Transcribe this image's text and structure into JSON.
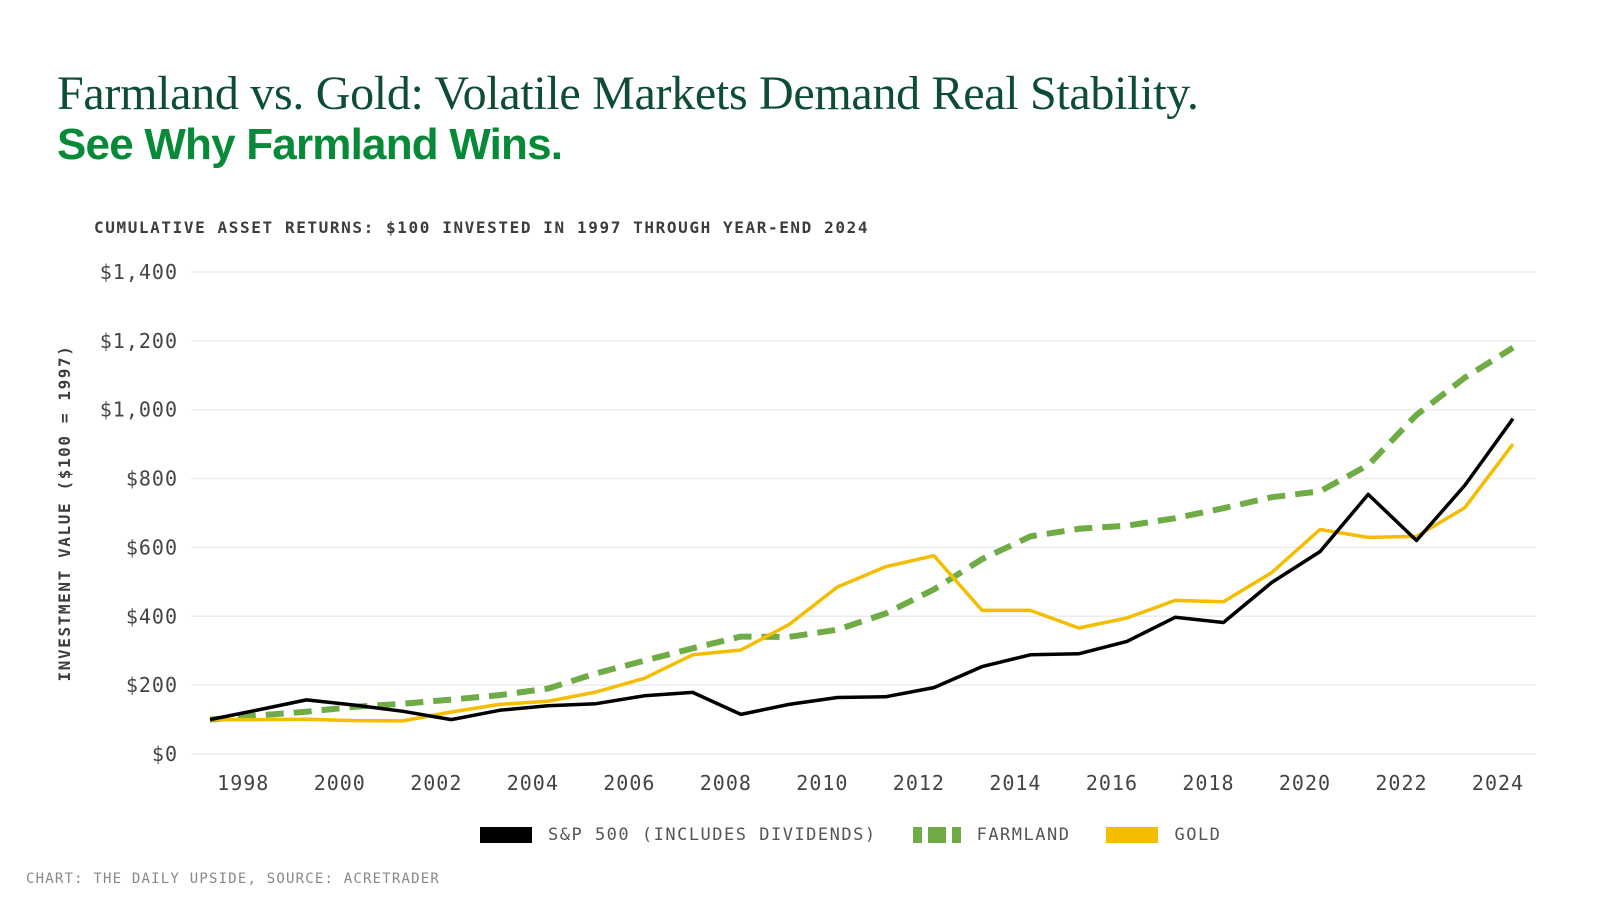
{
  "header": {
    "title": "Farmland vs. Gold: Volatile Markets Demand Real Stability.",
    "subtitle": "See Why Farmland Wins."
  },
  "chart_data": {
    "type": "line",
    "title": "CUMULATIVE ASSET RETURNS: $100 INVESTED IN 1997 THROUGH YEAR-END 2024",
    "ylabel": "INVESTMENT VALUE ($100 = 1997)",
    "xlabel": "",
    "ylim": [
      0,
      1400
    ],
    "yticks": [
      "$0",
      "$200",
      "$400",
      "$600",
      "$800",
      "$1,000",
      "$1,200",
      "$1,400"
    ],
    "ytick_values": [
      0,
      200,
      400,
      600,
      800,
      1000,
      1200,
      1400
    ],
    "xticks": [
      "1998",
      "2000",
      "2002",
      "2004",
      "2006",
      "2008",
      "2010",
      "2012",
      "2014",
      "2016",
      "2018",
      "2020",
      "2022",
      "2024"
    ],
    "grid": "horizontal",
    "legend_position": "bottom",
    "x": [
      1997,
      1998,
      1999,
      2000,
      2001,
      2002,
      2003,
      2004,
      2005,
      2006,
      2007,
      2008,
      2009,
      2010,
      2011,
      2012,
      2013,
      2014,
      2015,
      2016,
      2017,
      2018,
      2019,
      2020,
      2021,
      2022,
      2023,
      2024
    ],
    "series": [
      {
        "name": "S&P 500 (INCLUDES DIVIDENDS)",
        "color": "#000000",
        "style": "solid",
        "values": [
          100,
          128,
          157,
          142,
          124,
          100,
          127,
          140,
          146,
          169,
          179,
          115,
          144,
          164,
          166,
          193,
          254,
          288,
          291,
          327,
          397,
          382,
          498,
          588,
          754,
          620,
          780,
          974
        ]
      },
      {
        "name": "FARMLAND",
        "color": "#6fac45",
        "style": "dashed",
        "values": [
          100,
          112,
          123,
          137,
          146,
          158,
          171,
          190,
          234,
          271,
          307,
          341,
          340,
          361,
          408,
          478,
          566,
          632,
          654,
          663,
          685,
          714,
          746,
          763,
          839,
          985,
          1093,
          1180
        ]
      },
      {
        "name": "GOLD",
        "color": "#f5bd00",
        "style": "solid",
        "values": [
          100,
          100,
          101,
          97,
          96,
          122,
          144,
          153,
          180,
          220,
          288,
          302,
          376,
          485,
          544,
          576,
          417,
          417,
          366,
          395,
          446,
          442,
          527,
          652,
          629,
          632,
          715,
          900
        ]
      }
    ]
  },
  "footer": "CHART: THE DAILY UPSIDE, SOURCE: ACRETRADER"
}
